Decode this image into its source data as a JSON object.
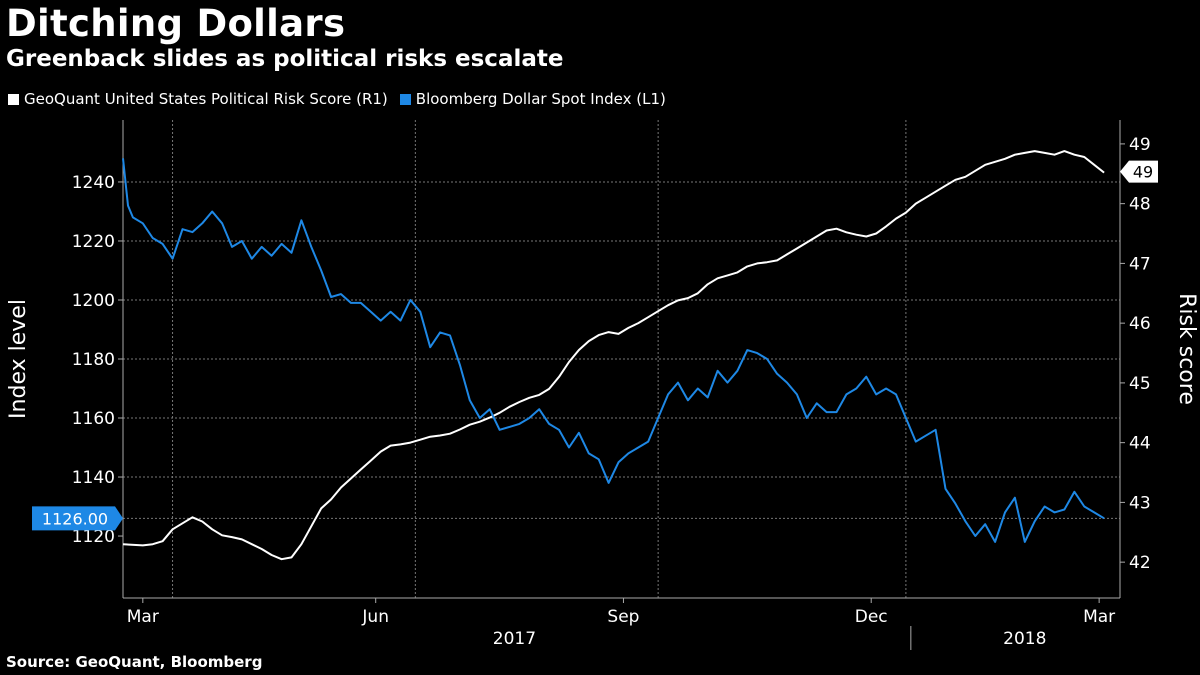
{
  "title": "Ditching Dollars",
  "subtitle": "Greenback slides as political risks escalate",
  "source": "Source: GeoQuant, Bloomberg",
  "colors": {
    "white_series": "#ffffff",
    "blue_series": "#1e88e5",
    "grid": "#777777",
    "background": "#000000"
  },
  "chart_data": {
    "type": "line",
    "xlabel": "",
    "ylabel_left": "Index level",
    "ylabel_right": "Risk score",
    "ylim_left": [
      1099,
      1261
    ],
    "ylim_right": [
      41.4,
      49.4
    ],
    "xlim": [
      0,
      100
    ],
    "x_ticks": [
      {
        "label": "Mar",
        "x": 2
      },
      {
        "label": "Jun",
        "x": 25.5
      },
      {
        "label": "Sep",
        "x": 50.5
      },
      {
        "label": "Dec",
        "x": 75.5
      },
      {
        "label": "Mar",
        "x": 98.5
      }
    ],
    "year_labels": [
      {
        "label": "2017",
        "x": 39.5
      },
      {
        "label": "2018",
        "x": 91
      }
    ],
    "year_separator_x": 79.5,
    "grid_x": [
      5,
      29.5,
      54,
      79
    ],
    "left_ticks": [
      1120,
      1140,
      1160,
      1180,
      1200,
      1220,
      1240
    ],
    "right_ticks": [
      42,
      43,
      44,
      45,
      46,
      47,
      48,
      49
    ],
    "grid_y_left": [
      1126,
      1140,
      1160,
      1180,
      1200,
      1220,
      1240
    ],
    "last_value_left": "1126.00",
    "last_value_right": "49",
    "series": [
      {
        "name": "GeoQuant United States Political Risk Score (R1)",
        "axis": "right",
        "color": "#ffffff",
        "x": [
          0,
          2,
          3,
          4,
          5,
          6,
          7,
          8,
          9,
          10,
          11,
          12,
          13,
          14,
          15,
          16,
          17,
          18,
          19,
          20,
          21,
          22,
          23,
          24,
          25,
          26,
          27,
          28,
          29,
          30,
          31,
          32,
          33,
          34,
          35,
          36,
          37,
          38,
          39,
          40,
          41,
          42,
          43,
          44,
          45,
          46,
          47,
          48,
          49,
          50,
          51,
          52,
          53,
          54,
          55,
          56,
          57,
          58,
          59,
          60,
          61,
          62,
          63,
          64,
          65,
          66,
          67,
          68,
          69,
          70,
          71,
          72,
          73,
          74,
          75,
          76,
          77,
          78,
          79,
          80,
          81,
          82,
          83,
          84,
          85,
          86,
          87,
          88,
          89,
          90,
          91,
          92,
          93,
          94,
          95,
          96,
          97,
          98,
          99
        ],
        "values": [
          42.3,
          42.28,
          42.3,
          42.35,
          42.55,
          42.65,
          42.75,
          42.68,
          42.55,
          42.45,
          42.42,
          42.38,
          42.3,
          42.22,
          42.12,
          42.05,
          42.08,
          42.3,
          42.6,
          42.9,
          43.05,
          43.25,
          43.4,
          43.55,
          43.7,
          43.85,
          43.95,
          43.97,
          44.0,
          44.05,
          44.1,
          44.12,
          44.15,
          44.22,
          44.3,
          44.35,
          44.42,
          44.5,
          44.6,
          44.68,
          44.75,
          44.8,
          44.9,
          45.1,
          45.35,
          45.55,
          45.7,
          45.8,
          45.85,
          45.82,
          45.92,
          46.0,
          46.1,
          46.2,
          46.3,
          46.38,
          46.42,
          46.5,
          46.65,
          46.75,
          46.8,
          46.85,
          46.95,
          47.0,
          47.02,
          47.05,
          47.15,
          47.25,
          47.35,
          47.45,
          47.55,
          47.58,
          47.52,
          47.48,
          47.45,
          47.5,
          47.62,
          47.75,
          47.85,
          48.0,
          48.1,
          48.2,
          48.3,
          48.4,
          48.45,
          48.55,
          48.65,
          48.7,
          48.75,
          48.82,
          48.85,
          48.88,
          48.85,
          48.82,
          48.88,
          48.82,
          48.78,
          48.65,
          48.52
        ]
      },
      {
        "name": "Bloomberg Dollar Spot Index (L1)",
        "axis": "left",
        "color": "#1e88e5",
        "x": [
          0,
          0.5,
          1,
          2,
          3,
          4,
          5,
          6,
          7,
          8,
          9,
          10,
          11,
          12,
          13,
          14,
          15,
          16,
          17,
          18,
          19,
          20,
          21,
          22,
          23,
          24,
          25,
          26,
          27,
          28,
          29,
          30,
          31,
          32,
          33,
          34,
          35,
          36,
          37,
          38,
          39,
          40,
          41,
          42,
          43,
          44,
          45,
          46,
          47,
          48,
          49,
          50,
          51,
          52,
          53,
          54,
          55,
          56,
          57,
          58,
          59,
          60,
          61,
          62,
          63,
          64,
          65,
          66,
          67,
          68,
          69,
          70,
          71,
          72,
          73,
          74,
          75,
          76,
          77,
          78,
          79,
          80,
          81,
          82,
          83,
          84,
          85,
          86,
          87,
          88,
          89,
          90,
          91,
          92,
          93,
          94,
          95,
          96,
          97,
          98,
          99
        ],
        "values": [
          1248,
          1232,
          1228,
          1226,
          1221,
          1219,
          1214,
          1224,
          1223,
          1226,
          1230,
          1226,
          1218,
          1220,
          1214,
          1218,
          1215,
          1219,
          1216,
          1227,
          1218,
          1210,
          1201,
          1202,
          1199,
          1199,
          1196,
          1193,
          1196,
          1193,
          1200,
          1196,
          1184,
          1189,
          1188,
          1178,
          1166,
          1160,
          1163,
          1156,
          1157,
          1158,
          1160,
          1163,
          1158,
          1156,
          1150,
          1155,
          1148,
          1146,
          1138,
          1145,
          1148,
          1150,
          1152,
          1160,
          1168,
          1172,
          1166,
          1170,
          1167,
          1176,
          1172,
          1176,
          1183,
          1182,
          1180,
          1175,
          1172,
          1168,
          1160,
          1165,
          1162,
          1162,
          1168,
          1170,
          1174,
          1168,
          1170,
          1168,
          1160,
          1152,
          1154,
          1156,
          1136,
          1131,
          1125,
          1120,
          1124,
          1118,
          1128,
          1133,
          1118,
          1125,
          1130,
          1128,
          1129,
          1135,
          1130,
          1128,
          1126
        ]
      }
    ]
  }
}
